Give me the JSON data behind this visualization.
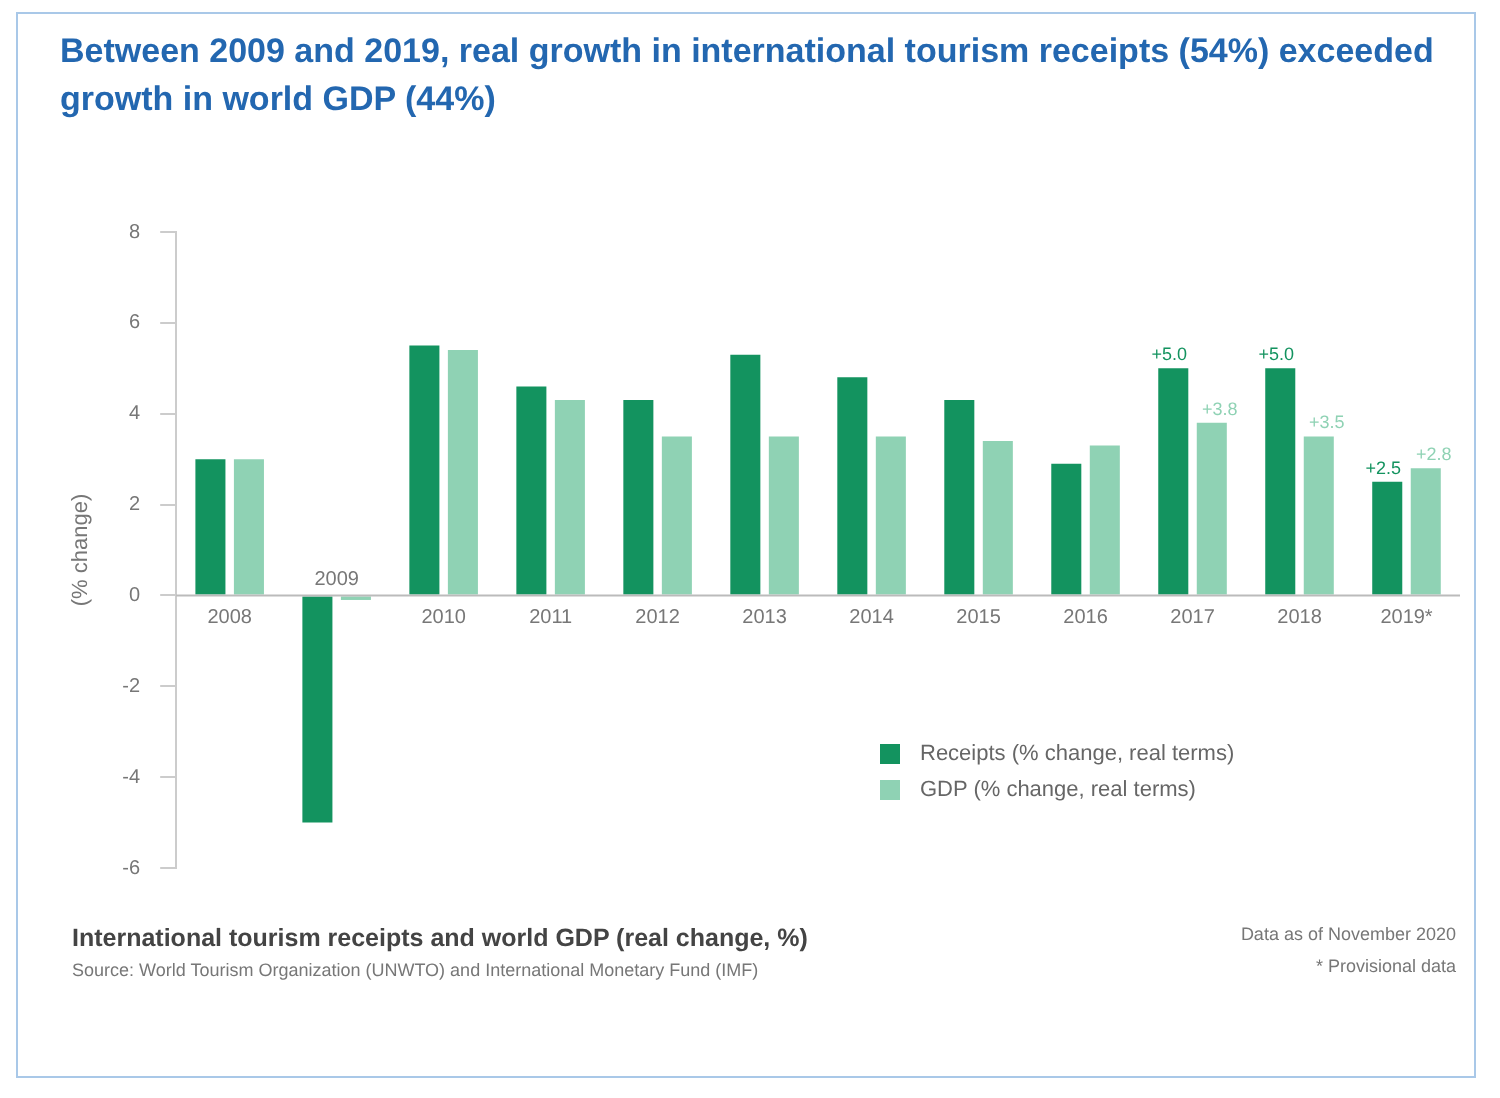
{
  "chart_data": {
    "type": "bar",
    "title": "Between 2009 and 2019, real growth in international tourism receipts (54%) exceeded growth in world GDP (44%)",
    "ylabel": "(% change)",
    "categories": [
      "2008",
      "2009",
      "2010",
      "2011",
      "2012",
      "2013",
      "2014",
      "2015",
      "2016",
      "2017",
      "2018",
      "2019*"
    ],
    "series": [
      {
        "name": "Receipts (% change, real terms)",
        "color": "#13935f",
        "values": [
          3.0,
          -5.0,
          5.5,
          4.6,
          4.3,
          5.3,
          4.8,
          4.3,
          2.9,
          5.0,
          5.0,
          2.5
        ],
        "value_labels": [
          null,
          null,
          null,
          null,
          null,
          null,
          null,
          null,
          null,
          "+5.0",
          "+5.0",
          "+2.5"
        ]
      },
      {
        "name": "GDP (% change, real terms)",
        "color": "#8fd2b4",
        "values": [
          3.0,
          -0.1,
          5.4,
          4.3,
          3.5,
          3.5,
          3.5,
          3.4,
          3.3,
          3.8,
          3.5,
          2.8
        ],
        "value_labels": [
          null,
          null,
          null,
          null,
          null,
          null,
          null,
          null,
          null,
          "+3.8",
          "+3.5",
          "+2.8"
        ]
      }
    ],
    "ylim": [
      -6,
      8
    ],
    "yticks": [
      -6,
      -4,
      -2,
      0,
      2,
      4,
      6,
      8
    ],
    "grid": false,
    "legend": "bottom right",
    "annotations": [
      "International tourism receipts and world GDP (real change, %)",
      "Source: World Tourism Organization (UNWTO) and International Monetary Fund (IMF)",
      "Data as of November 2020",
      "* Provisional data"
    ]
  }
}
